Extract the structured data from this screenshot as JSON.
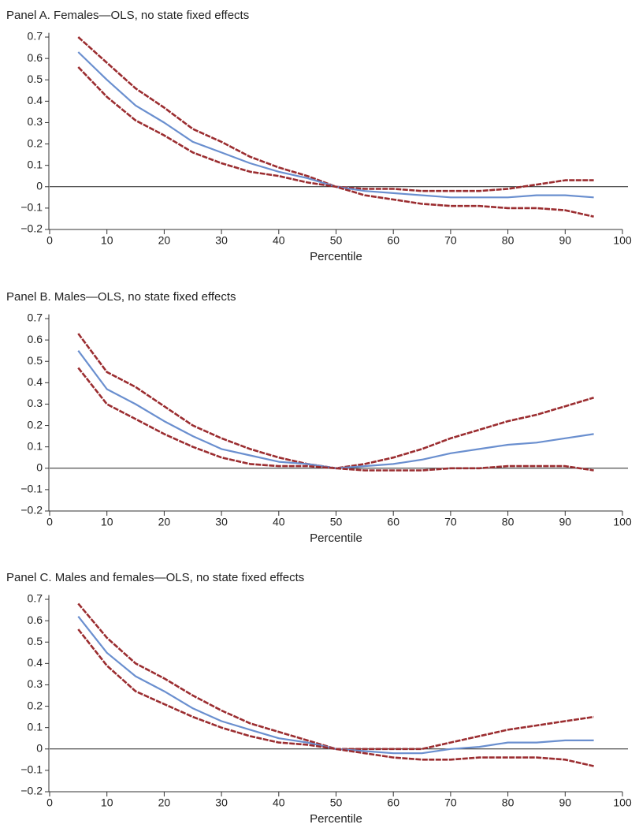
{
  "chart_data": [
    {
      "type": "line",
      "title": "Panel A. Females—OLS, no state fixed effects",
      "x_label": "Percentile",
      "xlim": [
        0,
        100
      ],
      "xticks": [
        0,
        10,
        20,
        30,
        40,
        50,
        60,
        70,
        80,
        90,
        100
      ],
      "ylim": [
        -0.2,
        0.72
      ],
      "yticks": [
        {
          "value": -0.2,
          "label": "−0.2"
        },
        {
          "value": -0.1,
          "label": "−0.1"
        },
        0,
        0.1,
        0.2,
        0.3,
        0.4,
        0.5,
        0.6,
        0.7
      ],
      "x": [
        5,
        10,
        15,
        20,
        25,
        30,
        35,
        40,
        45,
        50,
        55,
        60,
        65,
        70,
        75,
        80,
        85,
        90,
        95
      ],
      "series": [
        {
          "color": "#9b2d30",
          "dashed": true,
          "values": [
            0.7,
            0.58,
            0.46,
            0.37,
            0.27,
            0.21,
            0.14,
            0.09,
            0.05,
            0.0,
            -0.01,
            -0.01,
            -0.02,
            -0.02,
            -0.02,
            -0.01,
            0.01,
            0.03,
            0.03
          ]
        },
        {
          "color": "#6a8fcf",
          "dashed": false,
          "values": [
            0.63,
            0.5,
            0.38,
            0.3,
            0.21,
            0.16,
            0.11,
            0.07,
            0.04,
            0.0,
            -0.02,
            -0.03,
            -0.04,
            -0.05,
            -0.05,
            -0.05,
            -0.04,
            -0.04,
            -0.05
          ]
        },
        {
          "color": "#9b2d30",
          "dashed": true,
          "values": [
            0.56,
            0.42,
            0.31,
            0.24,
            0.16,
            0.11,
            0.07,
            0.05,
            0.02,
            0.0,
            -0.04,
            -0.06,
            -0.08,
            -0.09,
            -0.09,
            -0.1,
            -0.1,
            -0.11,
            -0.14
          ]
        }
      ]
    },
    {
      "type": "line",
      "title": "Panel B. Males—OLS, no state fixed effects",
      "x_label": "Percentile",
      "xlim": [
        0,
        100
      ],
      "xticks": [
        0,
        10,
        20,
        30,
        40,
        50,
        60,
        70,
        80,
        90,
        100
      ],
      "ylim": [
        -0.2,
        0.72
      ],
      "yticks": [
        {
          "value": -0.2,
          "label": "−0.2"
        },
        {
          "value": -0.1,
          "label": "−0.1"
        },
        0,
        0.1,
        0.2,
        0.3,
        0.4,
        0.5,
        0.6,
        0.7
      ],
      "x": [
        5,
        10,
        15,
        20,
        25,
        30,
        35,
        40,
        45,
        50,
        55,
        60,
        65,
        70,
        75,
        80,
        85,
        90,
        95
      ],
      "series": [
        {
          "color": "#9b2d30",
          "dashed": true,
          "values": [
            0.63,
            0.45,
            0.38,
            0.29,
            0.2,
            0.14,
            0.09,
            0.05,
            0.02,
            0.0,
            0.02,
            0.05,
            0.09,
            0.14,
            0.18,
            0.22,
            0.25,
            0.29,
            0.33
          ]
        },
        {
          "color": "#6a8fcf",
          "dashed": false,
          "values": [
            0.55,
            0.37,
            0.3,
            0.22,
            0.15,
            0.09,
            0.06,
            0.03,
            0.02,
            0.0,
            0.01,
            0.02,
            0.04,
            0.07,
            0.09,
            0.11,
            0.12,
            0.14,
            0.16
          ]
        },
        {
          "color": "#9b2d30",
          "dashed": true,
          "values": [
            0.47,
            0.3,
            0.23,
            0.16,
            0.1,
            0.05,
            0.02,
            0.01,
            0.01,
            0.0,
            -0.01,
            -0.01,
            -0.01,
            0.0,
            0.0,
            0.01,
            0.01,
            0.01,
            -0.01
          ]
        }
      ]
    },
    {
      "type": "line",
      "title": "Panel C. Males and females—OLS, no state fixed effects",
      "x_label": "Percentile",
      "xlim": [
        0,
        100
      ],
      "xticks": [
        0,
        10,
        20,
        30,
        40,
        50,
        60,
        70,
        80,
        90,
        100
      ],
      "ylim": [
        -0.2,
        0.72
      ],
      "yticks": [
        {
          "value": -0.2,
          "label": "−0.2"
        },
        {
          "value": -0.1,
          "label": "−0.1"
        },
        0,
        0.1,
        0.2,
        0.3,
        0.4,
        0.5,
        0.6,
        0.7
      ],
      "x": [
        5,
        10,
        15,
        20,
        25,
        30,
        35,
        40,
        45,
        50,
        55,
        60,
        65,
        70,
        75,
        80,
        85,
        90,
        95
      ],
      "series": [
        {
          "color": "#9b2d30",
          "dashed": true,
          "values": [
            0.68,
            0.52,
            0.4,
            0.33,
            0.25,
            0.18,
            0.12,
            0.08,
            0.04,
            0.0,
            0.0,
            0.0,
            0.0,
            0.03,
            0.06,
            0.09,
            0.11,
            0.13,
            0.15
          ]
        },
        {
          "color": "#6a8fcf",
          "dashed": false,
          "values": [
            0.62,
            0.45,
            0.34,
            0.27,
            0.19,
            0.13,
            0.09,
            0.05,
            0.03,
            0.0,
            -0.01,
            -0.02,
            -0.02,
            0.0,
            0.01,
            0.03,
            0.03,
            0.04,
            0.04
          ]
        },
        {
          "color": "#9b2d30",
          "dashed": true,
          "values": [
            0.56,
            0.39,
            0.27,
            0.21,
            0.15,
            0.1,
            0.06,
            0.03,
            0.02,
            0.0,
            -0.02,
            -0.04,
            -0.05,
            -0.05,
            -0.04,
            -0.04,
            -0.04,
            -0.05,
            -0.08
          ]
        }
      ]
    }
  ]
}
